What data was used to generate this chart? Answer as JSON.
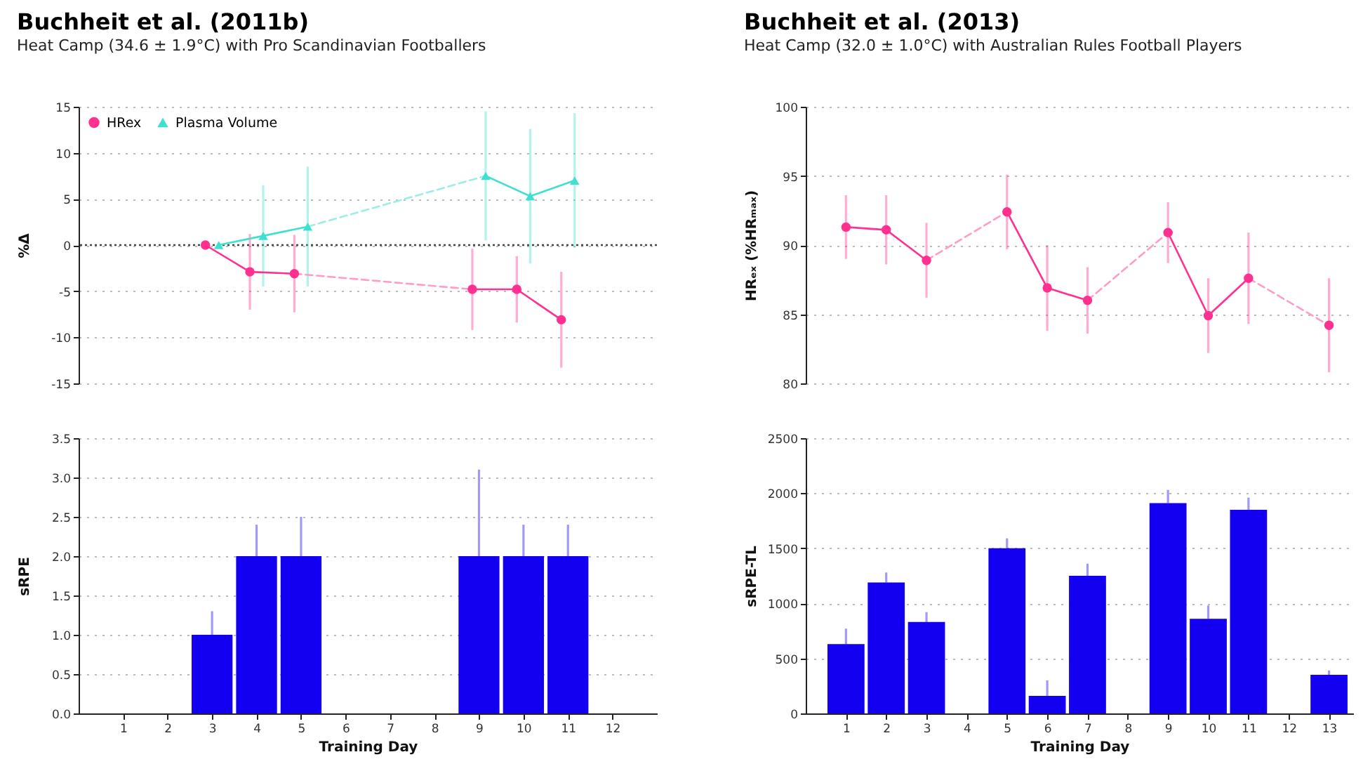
{
  "chart_data": [
    {
      "type": "line",
      "title": "Buchheit et al. (2011b)",
      "subtitle": "Heat Camp (34.6 ± 1.9°C) with Pro Scandinavian Footballers",
      "ylabel": "%Δ",
      "xlim": [
        0,
        13
      ],
      "ylim": [
        -15,
        15
      ],
      "yticks": [
        -15,
        -10,
        -5,
        0,
        5,
        10,
        15
      ],
      "tick_labels": "y",
      "grid": "y",
      "legend": "top left",
      "ref_lines": [
        {
          "axis": "y",
          "value": 0,
          "line_style": "dotted"
        }
      ],
      "series": [
        {
          "name": "HRex",
          "color": "#ff3090",
          "marker": "circle",
          "line_style": "solid",
          "x": [
            2.85,
            3.85,
            4.85,
            5.85,
            6.85,
            7.85,
            8.85,
            9.85,
            10.85
          ],
          "values": [
            0,
            -2.9,
            -3.1,
            null,
            null,
            null,
            -4.8,
            -4.8,
            -8.1
          ],
          "errors": [
            null,
            4.1,
            4.2,
            null,
            null,
            null,
            4.4,
            3.6,
            5.2
          ]
        },
        {
          "name": "Plasma Volume",
          "color": "#3fe0d0",
          "marker": "triangle",
          "line_style": "solid",
          "x": [
            3.15,
            4.15,
            5.15,
            6.15,
            7.15,
            8.15,
            9.15,
            10.15,
            11.15
          ],
          "values": [
            0,
            1.0,
            2.0,
            null,
            null,
            null,
            7.5,
            5.3,
            7.0
          ],
          "errors": [
            null,
            5.5,
            6.5,
            null,
            null,
            null,
            7.0,
            7.3,
            7.3
          ]
        },
        {
          "color": "#ff9cc8",
          "marker": "none",
          "line_style": "dashed",
          "x": [
            4.85,
            8.85
          ],
          "values": [
            -3.1,
            -4.8
          ]
        },
        {
          "color": "#9aeee6",
          "marker": "none",
          "line_style": "dashed",
          "x": [
            5.15,
            9.15
          ],
          "values": [
            2.0,
            7.5
          ]
        }
      ]
    },
    {
      "type": "line",
      "title": "Buchheit et al. (2013)",
      "subtitle": "Heat Camp (32.0 ± 1.0°C) with Australian Rules Football Players",
      "ylabel": "HRₑₓ (%HRₘₐₓ)",
      "xlim": [
        0,
        13.6
      ],
      "ylim": [
        80,
        100
      ],
      "yticks": [
        80,
        85,
        90,
        95,
        100
      ],
      "tick_labels": "y",
      "grid": "y",
      "series": [
        {
          "color": "#ff3090",
          "marker": "circle",
          "line_style": "solid",
          "x": [
            1,
            2,
            3,
            4,
            5,
            6,
            7,
            8,
            9,
            10,
            11,
            12,
            13
          ],
          "values": [
            91.3,
            91.1,
            88.9,
            null,
            92.4,
            86.9,
            86.0,
            null,
            90.9,
            84.9,
            87.6,
            null,
            84.2
          ],
          "errors": [
            2.3,
            2.5,
            2.7,
            null,
            2.7,
            3.1,
            2.4,
            null,
            2.2,
            2.7,
            3.3,
            null,
            3.4
          ]
        },
        {
          "color": "#ff9cc8",
          "marker": "none",
          "line_style": "dashed",
          "x": [
            3,
            5,
            6,
            7,
            9,
            10,
            11,
            13
          ],
          "values": [
            88.9,
            92.4,
            null,
            86.0,
            90.9,
            null,
            87.6,
            84.2
          ]
        }
      ]
    },
    {
      "type": "bar",
      "xlabel": "Training Day",
      "ylabel": "sRPE",
      "xlim": [
        0,
        13
      ],
      "xticks": [
        1,
        2,
        3,
        4,
        5,
        6,
        7,
        8,
        9,
        10,
        11,
        12
      ],
      "ylim": [
        0,
        3.5
      ],
      "yticks": [
        {
          "value": 0,
          "label": "0.0"
        },
        {
          "value": 0.5,
          "label": "0.5"
        },
        {
          "value": 1,
          "label": "1.0"
        },
        {
          "value": 1.5,
          "label": "1.5"
        },
        {
          "value": 2,
          "label": "2.0"
        },
        {
          "value": 2.5,
          "label": "2.5"
        },
        {
          "value": 3,
          "label": "3.0"
        },
        {
          "value": 3.5,
          "label": "3.5"
        }
      ],
      "grid": "y",
      "color": "#1400f0",
      "x": [
        3,
        4,
        5,
        9,
        10,
        11
      ],
      "values": [
        1.0,
        2.0,
        2.0,
        2.0,
        2.0,
        2.0
      ],
      "errors": [
        [
          1.0,
          1.3
        ],
        [
          2.0,
          2.4
        ],
        [
          2.0,
          2.5
        ],
        [
          2.0,
          3.1
        ],
        [
          2.0,
          2.4
        ],
        [
          2.0,
          2.4
        ]
      ]
    },
    {
      "type": "bar",
      "xlabel": "Training Day",
      "ylabel": "sRPE-TL",
      "xlim": [
        0,
        13.6
      ],
      "xticks": [
        1,
        2,
        3,
        4,
        5,
        6,
        7,
        8,
        9,
        10,
        11,
        12,
        13
      ],
      "ylim": [
        0,
        2500
      ],
      "yticks": [
        0,
        500,
        1000,
        1500,
        2000,
        2500
      ],
      "grid": "y",
      "color": "#1400f0",
      "x": [
        1,
        2,
        3,
        5,
        6,
        7,
        9,
        10,
        11,
        13
      ],
      "values": [
        630,
        1190,
        830,
        1500,
        160,
        1250,
        1910,
        860,
        1850,
        350
      ],
      "errors": [
        [
          630,
          770
        ],
        [
          1190,
          1280
        ],
        [
          830,
          920
        ],
        [
          1500,
          1590
        ],
        [
          160,
          300
        ],
        [
          1250,
          1360
        ],
        [
          1910,
          2030
        ],
        [
          860,
          980
        ],
        [
          1850,
          1960
        ],
        [
          350,
          390
        ]
      ]
    }
  ]
}
